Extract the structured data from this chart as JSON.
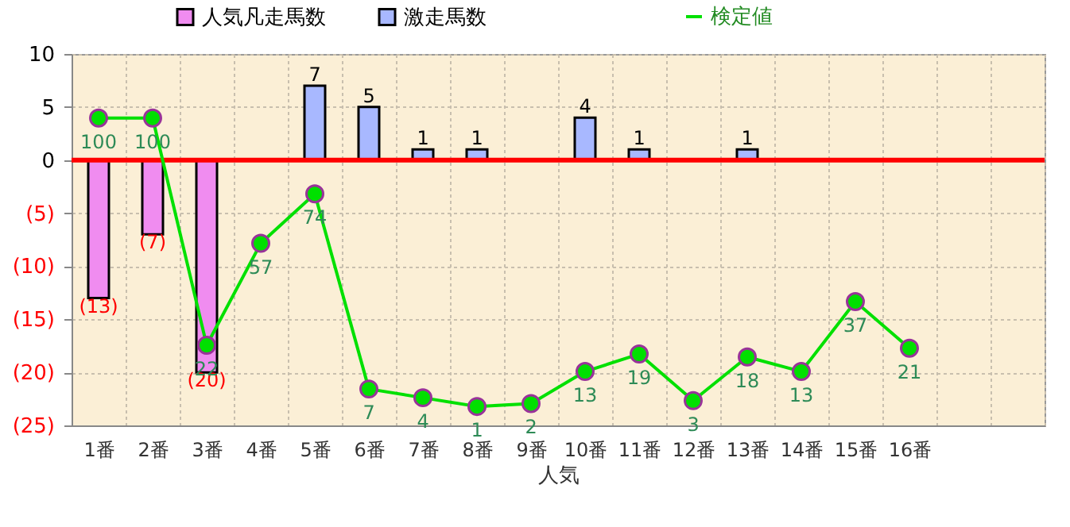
{
  "chart_data": {
    "type": "bar",
    "xlabel": "人気",
    "categories": [
      "1番",
      "2番",
      "3番",
      "4番",
      "5番",
      "6番",
      "7番",
      "8番",
      "9番",
      "10番",
      "11番",
      "12番",
      "13番",
      "14番",
      "15番",
      "16番",
      null,
      null
    ],
    "series": [
      {
        "name": "人気凡走馬数",
        "color": "#f08cf0",
        "values": [
          -13,
          -7,
          -20,
          null,
          null,
          null,
          null,
          null,
          null,
          null,
          null,
          null,
          null,
          null,
          null,
          null,
          null,
          null
        ],
        "value_labels": [
          "(13)",
          "(7)",
          "(20)",
          null,
          null,
          null,
          null,
          null,
          null,
          null,
          null,
          null,
          null,
          null,
          null,
          null,
          null,
          null
        ]
      },
      {
        "name": "激走馬数",
        "color": "#a8b8ff",
        "values": [
          null,
          null,
          null,
          null,
          7,
          5,
          1,
          1,
          null,
          4,
          1,
          null,
          1,
          null,
          null,
          null,
          null,
          null
        ],
        "value_labels": [
          null,
          null,
          null,
          null,
          "7",
          "5",
          "1",
          "1",
          null,
          "4",
          "1",
          null,
          "1",
          null,
          null,
          null,
          null,
          null
        ]
      },
      {
        "name": "検定値",
        "type": "line",
        "axis": "y2",
        "color": "#00e000",
        "values": [
          100,
          100,
          22,
          57,
          74,
          7,
          4,
          1,
          2,
          13,
          19,
          3,
          18,
          13,
          37,
          21,
          null,
          null
        ],
        "value_labels": [
          "100",
          "100",
          "22",
          "57",
          "74",
          "7",
          "4",
          "1",
          "2",
          "13",
          "19",
          "3",
          "18",
          "13",
          "37",
          "21",
          null,
          null
        ]
      }
    ],
    "ylim": [
      -25,
      10
    ],
    "yticks": [
      10,
      5,
      0,
      {
        "value": -5,
        "label": "(5)"
      },
      {
        "value": -10,
        "label": "(10)"
      },
      {
        "value": -15,
        "label": "(15)"
      },
      {
        "value": -20,
        "label": "(20)"
      },
      {
        "value": -25,
        "label": "(25)"
      }
    ],
    "y2lim": [
      -5.5,
      122
    ],
    "ref_lines": [
      {
        "axis": "y",
        "value": 0,
        "color": "#ff0000"
      }
    ],
    "grid": true,
    "legend": "top",
    "marker": "circle"
  }
}
